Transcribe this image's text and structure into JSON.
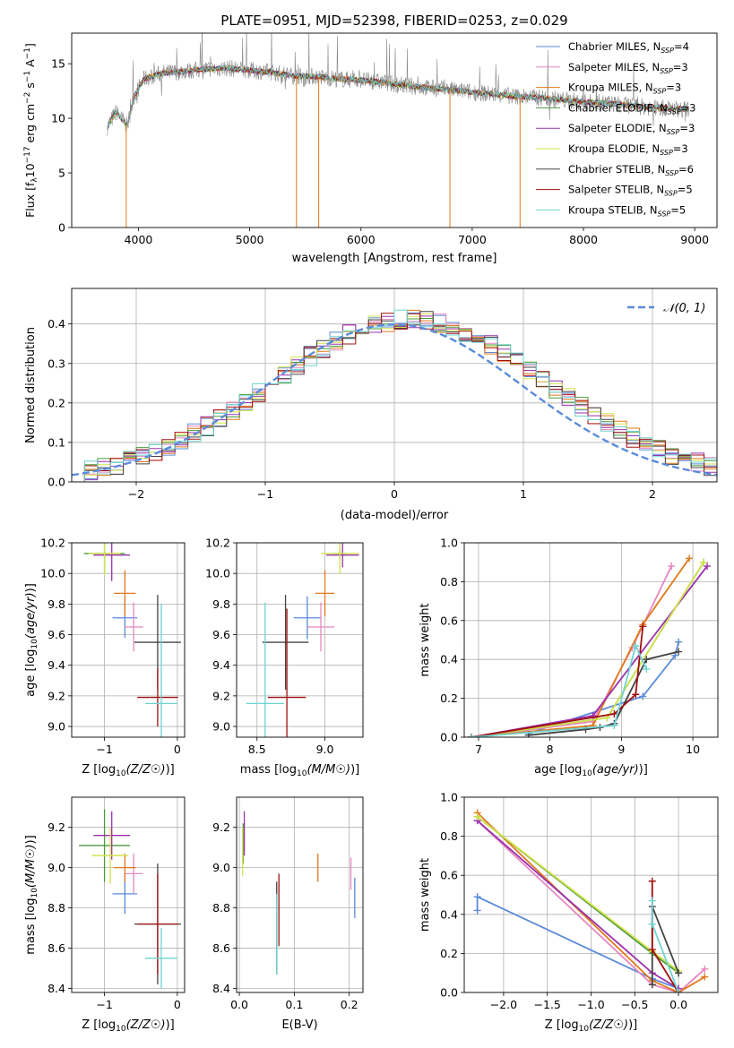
{
  "figure": {
    "title": "PLATE=0951, MJD=52398, FIBERID=0253, z=0.029"
  },
  "models": [
    {
      "name": "Chabrier MILES",
      "nssp": "4",
      "color": "#5b8bd9"
    },
    {
      "name": "Salpeter MILES",
      "nssp": "3",
      "color": "#e688c0"
    },
    {
      "name": "Kroupa MILES",
      "nssp": "3",
      "color": "#e0791b"
    },
    {
      "name": "Chabrier ELODIE",
      "nssp": "3",
      "color": "#4a9a3a"
    },
    {
      "name": "Salpeter ELODIE",
      "nssp": "3",
      "color": "#9a31ad"
    },
    {
      "name": "Kroupa ELODIE",
      "nssp": "3",
      "color": "#d3e24a"
    },
    {
      "name": "Chabrier STELIB",
      "nssp": "6",
      "color": "#444444"
    },
    {
      "name": "Salpeter STELIB",
      "nssp": "5",
      "color": "#a21010"
    },
    {
      "name": "Kroupa STELIB",
      "nssp": "5",
      "color": "#6fd3d3"
    }
  ],
  "chart_data": [
    {
      "id": "spectrum",
      "type": "line",
      "xlabel": "wavelength [Angstrom, rest frame]",
      "ylabel_parts": [
        "Flux [f",
        "λ",
        "10",
        "−17",
        " erg cm",
        "−2",
        " s",
        "−1",
        " A",
        "−1",
        "]"
      ],
      "xlim": [
        3400,
        9200
      ],
      "ylim": [
        0,
        17.8
      ],
      "xticks": [
        4000,
        5000,
        6000,
        7000,
        8000,
        9000
      ],
      "yticks": [
        0,
        5,
        10,
        15
      ],
      "data_trend": {
        "x": [
          3720,
          3800,
          3900,
          3960,
          4050,
          4200,
          4400,
          4600,
          4800,
          5000,
          5200,
          5400,
          5600,
          5800,
          6000,
          6200,
          6400,
          6600,
          6800,
          7000,
          7200,
          7400,
          7600,
          7800,
          8000,
          8200,
          8400,
          8600,
          8800,
          8950
        ],
        "y": [
          9.2,
          10.6,
          9.3,
          12.0,
          13.6,
          14.1,
          14.3,
          14.5,
          14.6,
          14.4,
          14.2,
          13.9,
          13.8,
          13.6,
          13.5,
          13.3,
          13.0,
          12.8,
          12.6,
          12.4,
          12.2,
          12.0,
          11.9,
          11.7,
          11.5,
          11.4,
          11.2,
          11.0,
          10.9,
          10.8
        ]
      },
      "dips": [
        {
          "x": 3890,
          "y": 0
        },
        {
          "x": 5420,
          "y": 0
        },
        {
          "x": 5620,
          "y": 0
        },
        {
          "x": 6800,
          "y": 0
        },
        {
          "x": 7430,
          "y": 0
        }
      ],
      "legend_loc": "upper right"
    },
    {
      "id": "residuals",
      "type": "step",
      "xlabel": "(data-model)/error",
      "ylabel": "Normed distribution",
      "xlim": [
        -2.5,
        2.5
      ],
      "ylim": [
        0,
        0.49
      ],
      "xticks": [
        -2,
        -1,
        0,
        1,
        2
      ],
      "xtick_labels": [
        "−2",
        "−1",
        "0",
        "1",
        "2"
      ],
      "yticks": [
        0.0,
        0.1,
        0.2,
        0.3,
        0.4
      ],
      "yticklabels": [
        "0.0",
        "0.1",
        "0.2",
        "0.3",
        "0.4"
      ],
      "bin_width": 0.1,
      "bin_start": -2.5,
      "reference": {
        "label": "𝒩(0, 1)",
        "mean": 0,
        "sigma": 1,
        "color": "#5b8bd9"
      },
      "legend_loc": "upper right",
      "grid": true
    },
    {
      "id": "age_vs_Z",
      "type": "errorbar",
      "xlabel": "Z [log10(Z/Z⊙)]",
      "ylabel": "age  [log10(age/yr)]",
      "xlim": [
        -1.45,
        0.1
      ],
      "ylim": [
        8.93,
        10.2
      ],
      "xticks": [
        -1,
        0
      ],
      "xtick_labels": [
        "−1",
        "0"
      ],
      "yticks": [
        9.0,
        9.2,
        9.4,
        9.6,
        9.8,
        10.0,
        10.2
      ],
      "yticklabels": [
        "9.0",
        "9.2",
        "9.4",
        "9.6",
        "9.8",
        "10.0",
        "10.2"
      ],
      "points": [
        {
          "model": 0,
          "x": -0.72,
          "xerr": 0.17,
          "y": 9.71,
          "yerr": 0.13
        },
        {
          "model": 1,
          "x": -0.6,
          "xerr": 0.13,
          "y": 9.65,
          "yerr": 0.16
        },
        {
          "model": 2,
          "x": -0.72,
          "xerr": 0.15,
          "y": 9.87,
          "yerr": 0.15
        },
        {
          "model": 3,
          "x": -1.0,
          "xerr": 0.28,
          "y": 10.13,
          "yerr": 0.13
        },
        {
          "model": 4,
          "x": -0.9,
          "xerr": 0.25,
          "y": 10.12,
          "yerr": 0.17
        },
        {
          "model": 5,
          "x": -1.0,
          "xerr": 0.22,
          "y": 10.13,
          "yerr": 0.14
        },
        {
          "model": 6,
          "x": -0.27,
          "xerr": 0.32,
          "y": 9.55,
          "yerr": 0.31
        },
        {
          "model": 7,
          "x": -0.27,
          "xerr": 0.28,
          "y": 9.19,
          "yerr": 0.19
        },
        {
          "model": 8,
          "x": -0.22,
          "xerr": 0.22,
          "y": 9.15,
          "yerr": 0.65
        }
      ]
    },
    {
      "id": "age_vs_mass",
      "type": "errorbar",
      "xlabel": "mass [log10(M/M⊙)]",
      "ylabel": "",
      "xlim": [
        8.35,
        9.28
      ],
      "ylim": [
        8.93,
        10.2
      ],
      "xticks": [
        8.5,
        9.0
      ],
      "xtick_labels": [
        "8.5",
        "9.0"
      ],
      "yticks": [
        9.0,
        9.2,
        9.4,
        9.6,
        9.8,
        10.0,
        10.2
      ],
      "yticklabels": [
        "9.0",
        "9.2",
        "9.4",
        "9.6",
        "9.8",
        "10.0",
        "10.2"
      ],
      "points": [
        {
          "model": 0,
          "x": 8.87,
          "xerr": 0.1,
          "y": 9.71,
          "yerr": 0.14
        },
        {
          "model": 1,
          "x": 8.97,
          "xerr": 0.1,
          "y": 9.65,
          "yerr": 0.16
        },
        {
          "model": 2,
          "x": 9.0,
          "xerr": 0.07,
          "y": 9.87,
          "yerr": 0.15
        },
        {
          "model": 3,
          "x": 9.11,
          "xerr": 0.05,
          "y": 10.13,
          "yerr": 0.04
        },
        {
          "model": 4,
          "x": 9.13,
          "xerr": 0.12,
          "y": 10.12,
          "yerr": 0.08
        },
        {
          "model": 5,
          "x": 9.11,
          "xerr": 0.14,
          "y": 10.13,
          "yerr": 0.13
        },
        {
          "model": 6,
          "x": 8.71,
          "xerr": 0.17,
          "y": 9.55,
          "yerr": 0.31
        },
        {
          "model": 7,
          "x": 8.72,
          "xerr": 0.14,
          "y": 9.19,
          "yerr": 0.58
        },
        {
          "model": 8,
          "x": 8.56,
          "xerr": 0.14,
          "y": 9.15,
          "yerr": 0.66
        }
      ]
    },
    {
      "id": "mass_weight_vs_age",
      "type": "line",
      "xlabel": "age  [log10(age/yr)]",
      "ylabel": "mass weight",
      "xlim": [
        6.8,
        10.35
      ],
      "ylim": [
        0,
        1
      ],
      "xticks": [
        7,
        8,
        9,
        10
      ],
      "xtick_labels": [
        "7",
        "8",
        "9",
        "10"
      ],
      "yticks": [
        0.0,
        0.2,
        0.4,
        0.6,
        0.8,
        1.0
      ],
      "yticklabels": [
        "0.0",
        "0.2",
        "0.4",
        "0.6",
        "0.8",
        "1.0"
      ],
      "grid": true,
      "series": [
        {
          "model": 0,
          "x": [
            7.7,
            9.3,
            9.75,
            9.8
          ],
          "y": [
            0.02,
            0.21,
            0.42,
            0.49
          ]
        },
        {
          "model": 1,
          "x": [
            6.9,
            8.6,
            9.15,
            9.7
          ],
          "y": [
            0.0,
            0.08,
            0.46,
            0.88
          ]
        },
        {
          "model": 2,
          "x": [
            6.9,
            8.6,
            9.3,
            9.95
          ],
          "y": [
            0.0,
            0.06,
            0.58,
            0.92
          ]
        },
        {
          "model": 3,
          "x": [
            6.9,
            8.8,
            10.15
          ],
          "y": [
            0.0,
            0.1,
            0.9
          ]
        },
        {
          "model": 4,
          "x": [
            6.9,
            8.6,
            10.2
          ],
          "y": [
            0.0,
            0.11,
            0.88
          ]
        },
        {
          "model": 5,
          "x": [
            6.9,
            8.8,
            10.15
          ],
          "y": [
            0.0,
            0.1,
            0.9
          ]
        },
        {
          "model": 6,
          "x": [
            7.7,
            8.5,
            8.7,
            8.9,
            9.35,
            9.8
          ],
          "y": [
            0.01,
            0.04,
            0.05,
            0.07,
            0.4,
            0.44
          ]
        },
        {
          "model": 7,
          "x": [
            6.9,
            8.9,
            9.2,
            9.3
          ],
          "y": [
            0.0,
            0.12,
            0.22,
            0.57
          ]
        },
        {
          "model": 8,
          "x": [
            6.9,
            8.9,
            9.2,
            9.35
          ],
          "y": [
            0.0,
            0.06,
            0.47,
            0.35
          ]
        }
      ]
    },
    {
      "id": "mass_vs_Z",
      "type": "errorbar",
      "xlabel": "Z [log10(Z/Z⊙)]",
      "ylabel": "mass [log10(M/M⊙)]",
      "xlim": [
        -1.45,
        0.1
      ],
      "ylim": [
        8.38,
        9.35
      ],
      "xticks": [
        -1,
        0
      ],
      "xtick_labels": [
        "−1",
        "0"
      ],
      "yticks": [
        8.4,
        8.6,
        8.8,
        9.0,
        9.2
      ],
      "yticklabels": [
        "8.4",
        "8.6",
        "8.8",
        "9.0",
        "9.2"
      ],
      "points": [
        {
          "model": 0,
          "x": -0.72,
          "xerr": 0.17,
          "y": 8.87,
          "yerr": 0.1
        },
        {
          "model": 1,
          "x": -0.6,
          "xerr": 0.13,
          "y": 8.97,
          "yerr": 0.1
        },
        {
          "model": 2,
          "x": -0.72,
          "xerr": 0.15,
          "y": 9.0,
          "yerr": 0.07
        },
        {
          "model": 3,
          "x": -1.0,
          "xerr": 0.35,
          "y": 9.11,
          "yerr": 0.18
        },
        {
          "model": 4,
          "x": -0.9,
          "xerr": 0.25,
          "y": 9.16,
          "yerr": 0.12
        },
        {
          "model": 5,
          "x": -0.92,
          "xerr": 0.25,
          "y": 9.06,
          "yerr": 0.14
        },
        {
          "model": 6,
          "x": -0.27,
          "xerr": 0.32,
          "y": 8.72,
          "yerr": 0.3
        },
        {
          "model": 7,
          "x": -0.27,
          "xerr": 0.28,
          "y": 8.72,
          "yerr": 0.25
        },
        {
          "model": 8,
          "x": -0.22,
          "xerr": 0.22,
          "y": 8.55,
          "yerr": 0.15
        }
      ]
    },
    {
      "id": "mass_vs_ebv",
      "type": "errorbar",
      "xlabel": "E(B-V)",
      "ylabel": "",
      "xlim": [
        -0.005,
        0.225
      ],
      "ylim": [
        8.38,
        9.35
      ],
      "xticks": [
        0.0,
        0.1,
        0.2
      ],
      "xtick_labels": [
        "0.0",
        "0.1",
        "0.2"
      ],
      "yticks": [
        8.4,
        8.6,
        8.8,
        9.0,
        9.2
      ],
      "yticklabels": [
        "8.4",
        "8.6",
        "8.8",
        "9.0",
        "9.2"
      ],
      "points": [
        {
          "model": 0,
          "x": 0.21,
          "xerr": 0.0,
          "y": 8.85,
          "yerr": 0.1
        },
        {
          "model": 1,
          "x": 0.203,
          "xerr": 0.0,
          "y": 8.97,
          "yerr": 0.08
        },
        {
          "model": 2,
          "x": 0.143,
          "xerr": 0.0,
          "y": 9.0,
          "yerr": 0.07
        },
        {
          "model": 3,
          "x": 0.007,
          "xerr": 0.0,
          "y": 9.12,
          "yerr": 0.1
        },
        {
          "model": 4,
          "x": 0.009,
          "xerr": 0.0,
          "y": 9.17,
          "yerr": 0.11
        },
        {
          "model": 5,
          "x": 0.006,
          "xerr": 0.0,
          "y": 9.08,
          "yerr": 0.12
        },
        {
          "model": 6,
          "x": 0.068,
          "xerr": 0.0,
          "y": 8.7,
          "yerr": 0.23
        },
        {
          "model": 7,
          "x": 0.072,
          "xerr": 0.0,
          "y": 8.79,
          "yerr": 0.18
        },
        {
          "model": 8,
          "x": 0.068,
          "xerr": 0.0,
          "y": 8.67,
          "yerr": 0.2
        }
      ]
    },
    {
      "id": "mass_weight_vs_Z",
      "type": "line",
      "xlabel": "Z [log10(Z/Z⊙)]",
      "ylabel": "mass weight",
      "xlim": [
        -2.45,
        0.45
      ],
      "ylim": [
        0,
        1
      ],
      "xticks": [
        -2.0,
        -1.5,
        -1.0,
        -0.5,
        0.0
      ],
      "xtick_labels": [
        "−2.0",
        "−1.5",
        "−1.0",
        "−0.5",
        "0.0"
      ],
      "yticks": [
        0.0,
        0.2,
        0.4,
        0.6,
        0.8,
        1.0
      ],
      "yticklabels": [
        "0.0",
        "0.2",
        "0.4",
        "0.6",
        "0.8",
        "1.0"
      ],
      "grid": true,
      "series": [
        {
          "model": 0,
          "x": [
            -2.3,
            -2.3,
            -0.3,
            0.0
          ],
          "y": [
            0.42,
            0.49,
            0.07,
            0.02
          ]
        },
        {
          "model": 1,
          "x": [
            -2.3,
            -0.3,
            0.0,
            0.3
          ],
          "y": [
            0.88,
            0.04,
            0.0,
            0.12
          ]
        },
        {
          "model": 2,
          "x": [
            -2.3,
            -0.3,
            0.0,
            0.3
          ],
          "y": [
            0.92,
            0.06,
            0.0,
            0.08
          ]
        },
        {
          "model": 3,
          "x": [
            -2.3,
            -0.3,
            0.0
          ],
          "y": [
            0.9,
            0.2,
            0.1
          ]
        },
        {
          "model": 4,
          "x": [
            -2.3,
            -0.3,
            0.0
          ],
          "y": [
            0.88,
            0.1,
            0.02
          ]
        },
        {
          "model": 5,
          "x": [
            -2.3,
            -0.3,
            0.0
          ],
          "y": [
            0.9,
            0.21,
            0.11
          ]
        },
        {
          "model": 6,
          "x": [
            -0.3,
            -0.3,
            0.0
          ],
          "y": [
            0.04,
            0.44,
            0.1
          ]
        },
        {
          "model": 7,
          "x": [
            -0.3,
            -0.3,
            0.0
          ],
          "y": [
            0.57,
            0.22,
            0.0
          ]
        },
        {
          "model": 8,
          "x": [
            -0.3,
            -0.3,
            0.0
          ],
          "y": [
            0.47,
            0.35,
            0.0
          ]
        }
      ]
    }
  ]
}
